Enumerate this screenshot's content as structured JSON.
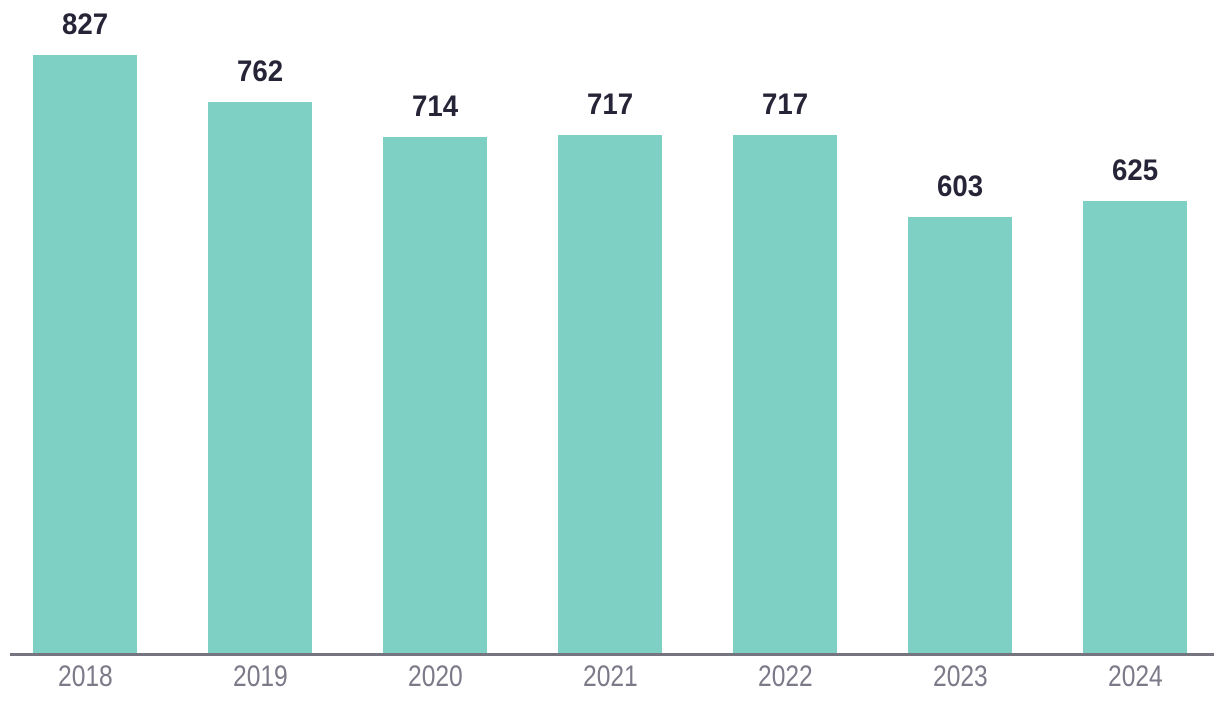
{
  "chart_data": {
    "type": "bar",
    "categories": [
      "2018",
      "2019",
      "2020",
      "2021",
      "2022",
      "2023",
      "2024"
    ],
    "values": [
      827,
      762,
      714,
      717,
      717,
      603,
      625
    ],
    "title": "",
    "xlabel": "",
    "ylabel": "",
    "ylim": [
      0,
      903
    ],
    "grid": false,
    "legend": false,
    "value_labels_shown": true,
    "colors": {
      "bar_fill": "#7ed0c5",
      "value_label": "#262437",
      "axis_tick_label": "#7b7a88",
      "axis_line": "#76757f",
      "background": "#ffffff"
    }
  }
}
